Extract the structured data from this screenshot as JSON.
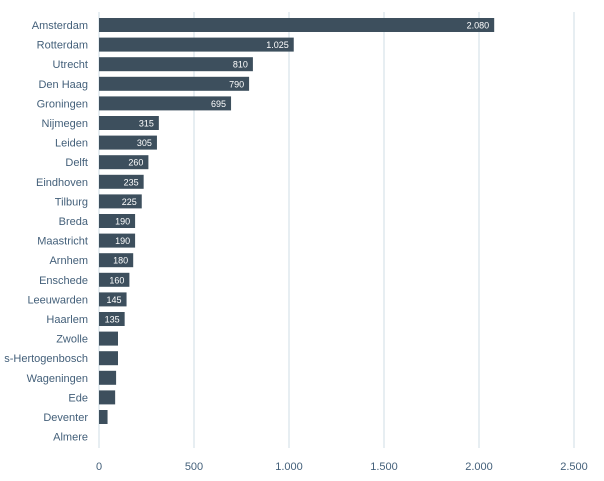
{
  "chart_data": {
    "type": "bar",
    "orientation": "horizontal",
    "title": "",
    "xlabel": "",
    "ylabel": "",
    "categories": [
      "Amsterdam",
      "Rotterdam",
      "Utrecht",
      "Den Haag",
      "Groningen",
      "Nijmegen",
      "Leiden",
      "Delft",
      "Eindhoven",
      "Tilburg",
      "Breda",
      "Maastricht",
      "Arnhem",
      "Enschede",
      "Leeuwarden",
      "Haarlem",
      "Zwolle",
      "s-Hertogenbosch",
      "Wageningen",
      "Ede",
      "Deventer",
      "Almere"
    ],
    "values": [
      2080,
      1025,
      810,
      790,
      695,
      315,
      305,
      260,
      235,
      225,
      190,
      190,
      180,
      160,
      145,
      135,
      100,
      100,
      90,
      85,
      45,
      0
    ],
    "data_labels": [
      "2.080",
      "1.025",
      "810",
      "790",
      "695",
      "315",
      "305",
      "260",
      "235",
      "225",
      "190",
      "190",
      "180",
      "160",
      "145",
      "135",
      "",
      "",
      "",
      "",
      "",
      ""
    ],
    "xlim": [
      0,
      2500
    ],
    "x_ticks": [
      0,
      500,
      1000,
      1500,
      2000,
      2500
    ],
    "x_tick_labels": [
      "0",
      "500",
      "1.000",
      "1.500",
      "2.000",
      "2.500"
    ],
    "grid": "vertical",
    "legend": "none",
    "colors": {
      "bar": "#3d4f5d",
      "gridline": "#cfdde6",
      "label": "#44607a",
      "data_label": "#ffffff"
    }
  }
}
